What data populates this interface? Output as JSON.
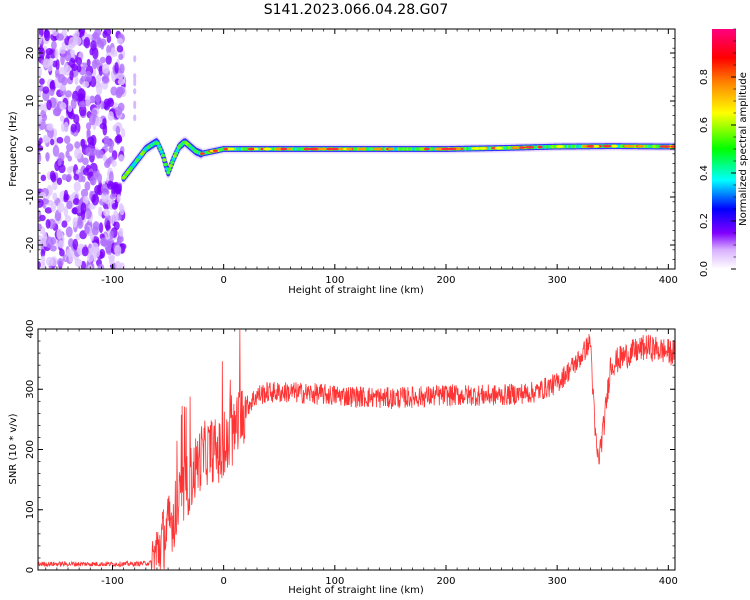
{
  "title": "S141.2023.066.04.28.G07",
  "chart_data": [
    {
      "type": "heatmap",
      "xlabel": "Height of straight line (km)",
      "ylabel": "Frequency (Hz)",
      "xlim": [
        -167,
        406
      ],
      "ylim": [
        -25,
        25
      ],
      "xticks": [
        -100,
        0,
        100,
        200,
        300,
        400
      ],
      "yticks": [
        -20,
        -10,
        0,
        10,
        20
      ],
      "colorbar": {
        "label": "Normalized spectral amplitude",
        "range": [
          0,
          1
        ],
        "ticks": [
          0.0,
          0.2,
          0.4,
          0.6,
          0.8
        ],
        "colormap": [
          "#ffffff",
          "#8000ff",
          "#0000ff",
          "#00ffff",
          "#00ff00",
          "#ffff00",
          "#ff8000",
          "#ff0000",
          "#ff0080"
        ]
      },
      "ridge": {
        "x": [
          -90,
          -85,
          -80,
          -75,
          -70,
          -65,
          -60,
          -55,
          -50,
          -45,
          -40,
          -35,
          -30,
          -25,
          -20,
          0,
          50,
          100,
          150,
          200,
          250,
          300,
          350,
          406
        ],
        "y": [
          -6,
          -4.5,
          -3,
          -1.5,
          0,
          0.8,
          1.5,
          -1,
          -5,
          -2,
          0.5,
          1.5,
          0.5,
          -0.5,
          -1,
          0,
          0,
          0,
          0,
          0,
          0.2,
          0.5,
          0.6,
          0.5
        ]
      },
      "noise_region_x": [
        -167,
        -90
      ]
    },
    {
      "type": "line",
      "xlabel": "Height of straight line (km)",
      "ylabel": "SNR (10 * v/v)",
      "xlim": [
        -167,
        406
      ],
      "ylim": [
        0,
        400
      ],
      "xticks": [
        -100,
        0,
        100,
        200,
        300,
        400
      ],
      "yticks": [
        0,
        100,
        200,
        300,
        400
      ],
      "series": [
        {
          "color": "#ff3333",
          "x": [
            -167,
            -120,
            -80,
            -65,
            -60,
            -50,
            -40,
            -30,
            -20,
            -10,
            0,
            10,
            20,
            30,
            40,
            60,
            100,
            150,
            200,
            250,
            280,
            300,
            320,
            330,
            334,
            337,
            342,
            348,
            360,
            380,
            406
          ],
          "y": [
            10,
            10,
            10,
            12,
            30,
            70,
            110,
            150,
            190,
            200,
            190,
            230,
            270,
            290,
            295,
            295,
            290,
            285,
            290,
            290,
            295,
            310,
            350,
            380,
            230,
            180,
            240,
            340,
            355,
            370,
            360
          ]
        }
      ]
    }
  ]
}
